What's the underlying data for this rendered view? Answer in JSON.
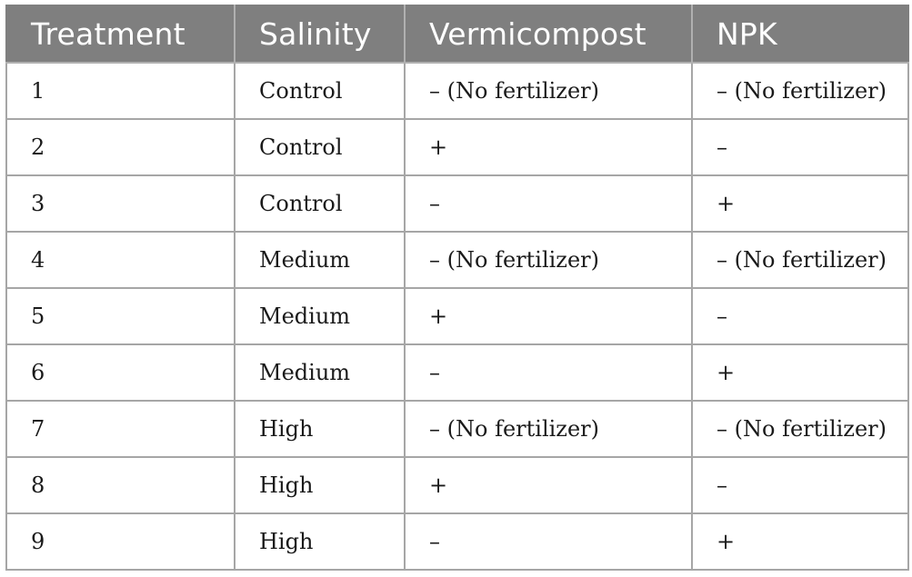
{
  "table": {
    "headers": [
      "Treatment",
      "Salinity",
      "Vermicompost",
      "NPK"
    ],
    "rows": [
      [
        "1",
        "Control",
        "– (No fertilizer)",
        "– (No fertilizer)"
      ],
      [
        "2",
        "Control",
        "+",
        "–"
      ],
      [
        "3",
        "Control",
        "–",
        "+"
      ],
      [
        "4",
        "Medium",
        "– (No fertilizer)",
        "– (No fertilizer)"
      ],
      [
        "5",
        "Medium",
        "+",
        "–"
      ],
      [
        "6",
        "Medium",
        "–",
        "+"
      ],
      [
        "7",
        "High",
        "– (No fertilizer)",
        "– (No fertilizer)"
      ],
      [
        "8",
        "High",
        "+",
        "–"
      ],
      [
        "9",
        "High",
        "–",
        "+"
      ]
    ]
  }
}
